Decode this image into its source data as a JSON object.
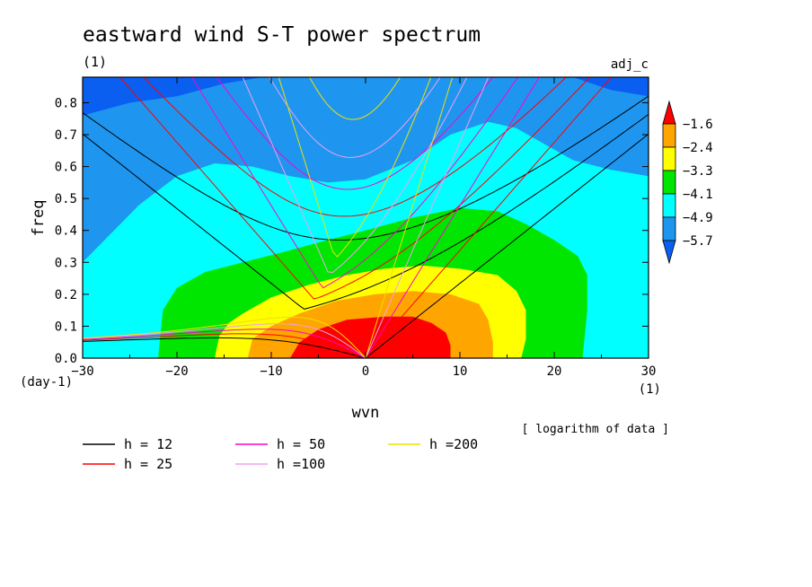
{
  "title": "eastward wind S-T power spectrum",
  "subtitle_left": "(1)",
  "subtitle_right": "adj_c",
  "chart_data": {
    "type": "heatmap",
    "xlabel": "wvn",
    "ylabel": "freq",
    "x_unit": "(1)",
    "y_unit": "(day-1)",
    "xlim": [
      -30,
      30
    ],
    "ylim": [
      0,
      0.88
    ],
    "x_ticks": [
      "−30",
      "−20",
      "−10",
      "0",
      "10",
      "20",
      "30"
    ],
    "x_tick_values": [
      -30,
      -20,
      -10,
      0,
      10,
      20,
      30
    ],
    "y_ticks": [
      "0.0",
      "0.1",
      "0.2",
      "0.3",
      "0.4",
      "0.5",
      "0.6",
      "0.7",
      "0.8"
    ],
    "y_tick_values": [
      0,
      0.1,
      0.2,
      0.3,
      0.4,
      0.5,
      0.6,
      0.7,
      0.8
    ],
    "colorbar": {
      "levels": [
        "−1.6",
        "−2.4",
        "−3.3",
        "−4.1",
        "−4.9",
        "−5.7"
      ],
      "colors": [
        "#0a5ff0",
        "#1e96f0",
        "#00ffff",
        "#00e600",
        "#ffff00",
        "#ffa500",
        "#ff0000"
      ]
    },
    "note": "[ logarithm of data ]",
    "contour_fills": [
      {
        "level": "<-5.7",
        "color": "#0a5ff0",
        "outline": [
          [
            -30,
            0.88
          ],
          [
            30,
            0.88
          ],
          [
            30,
            0.88
          ],
          [
            -30,
            0.88
          ]
        ]
      },
      {
        "level": "-5.7",
        "color": "#1e96f0",
        "outline": [
          [
            -30,
            0.76
          ],
          [
            -25,
            0.8
          ],
          [
            -20,
            0.82
          ],
          [
            -15,
            0.86
          ],
          [
            -11,
            0.88
          ],
          [
            22,
            0.88
          ],
          [
            26,
            0.84
          ],
          [
            30,
            0.82
          ],
          [
            30,
            0
          ],
          [
            -30,
            0
          ]
        ]
      },
      {
        "level": "-4.9",
        "color": "#00ffff",
        "outline": [
          [
            -30,
            0.3
          ],
          [
            -27,
            0.39
          ],
          [
            -24,
            0.48
          ],
          [
            -20,
            0.57
          ],
          [
            -16,
            0.61
          ],
          [
            -12,
            0.6
          ],
          [
            -8,
            0.57
          ],
          [
            -4,
            0.55
          ],
          [
            0,
            0.56
          ],
          [
            5,
            0.62
          ],
          [
            9,
            0.7
          ],
          [
            13,
            0.74
          ],
          [
            16,
            0.72
          ],
          [
            19,
            0.67
          ],
          [
            22,
            0.62
          ],
          [
            26,
            0.59
          ],
          [
            30,
            0.57
          ],
          [
            30,
            0
          ],
          [
            -30,
            0
          ]
        ]
      },
      {
        "level": "-4.1",
        "color": "#00e600",
        "outline": [
          [
            -22,
            0
          ],
          [
            -21.5,
            0.15
          ],
          [
            -20,
            0.22
          ],
          [
            -17,
            0.27
          ],
          [
            -13,
            0.3
          ],
          [
            -9,
            0.33
          ],
          [
            -4,
            0.37
          ],
          [
            0,
            0.4
          ],
          [
            5,
            0.44
          ],
          [
            10,
            0.47
          ],
          [
            14,
            0.46
          ],
          [
            17,
            0.42
          ],
          [
            20,
            0.37
          ],
          [
            22.5,
            0.32
          ],
          [
            23.5,
            0.26
          ],
          [
            23.5,
            0.15
          ],
          [
            23,
            0
          ]
        ]
      },
      {
        "level": "-3.3",
        "color": "#ffff00",
        "outline": [
          [
            -16,
            0
          ],
          [
            -15.5,
            0.07
          ],
          [
            -14.5,
            0.11
          ],
          [
            -13,
            0.14
          ],
          [
            -10,
            0.19
          ],
          [
            -6,
            0.23
          ],
          [
            -2,
            0.26
          ],
          [
            2,
            0.28
          ],
          [
            6,
            0.29
          ],
          [
            10,
            0.28
          ],
          [
            14,
            0.26
          ],
          [
            16,
            0.21
          ],
          [
            17,
            0.15
          ],
          [
            17,
            0.06
          ],
          [
            16.5,
            0
          ]
        ]
      },
      {
        "level": "-2.4",
        "color": "#ffa500",
        "outline": [
          [
            -12.5,
            0
          ],
          [
            -12,
            0.06
          ],
          [
            -10,
            0.1
          ],
          [
            -7,
            0.14
          ],
          [
            -3,
            0.18
          ],
          [
            1,
            0.2
          ],
          [
            5,
            0.21
          ],
          [
            9,
            0.2
          ],
          [
            12,
            0.17
          ],
          [
            13,
            0.12
          ],
          [
            13.5,
            0.05
          ],
          [
            13.5,
            0
          ]
        ]
      },
      {
        "level": "-1.6",
        "color": "#ff0000",
        "outline": [
          [
            -8,
            0
          ],
          [
            -7,
            0.05
          ],
          [
            -5,
            0.09
          ],
          [
            -2,
            0.12
          ],
          [
            2,
            0.13
          ],
          [
            5,
            0.13
          ],
          [
            7,
            0.11
          ],
          [
            8.5,
            0.08
          ],
          [
            9,
            0.04
          ],
          [
            9,
            0
          ]
        ]
      }
    ],
    "series": [
      {
        "name": "h = 12",
        "color": "#000000",
        "h": 12
      },
      {
        "name": "h = 25",
        "color": "#ff0000",
        "h": 25
      },
      {
        "name": "h = 50",
        "color": "#ff00c8",
        "h": 50
      },
      {
        "name": "h =100",
        "color": "#f0a0f0",
        "h": 100
      },
      {
        "name": "h =200",
        "color": "#f0e000",
        "h": 200
      }
    ]
  }
}
